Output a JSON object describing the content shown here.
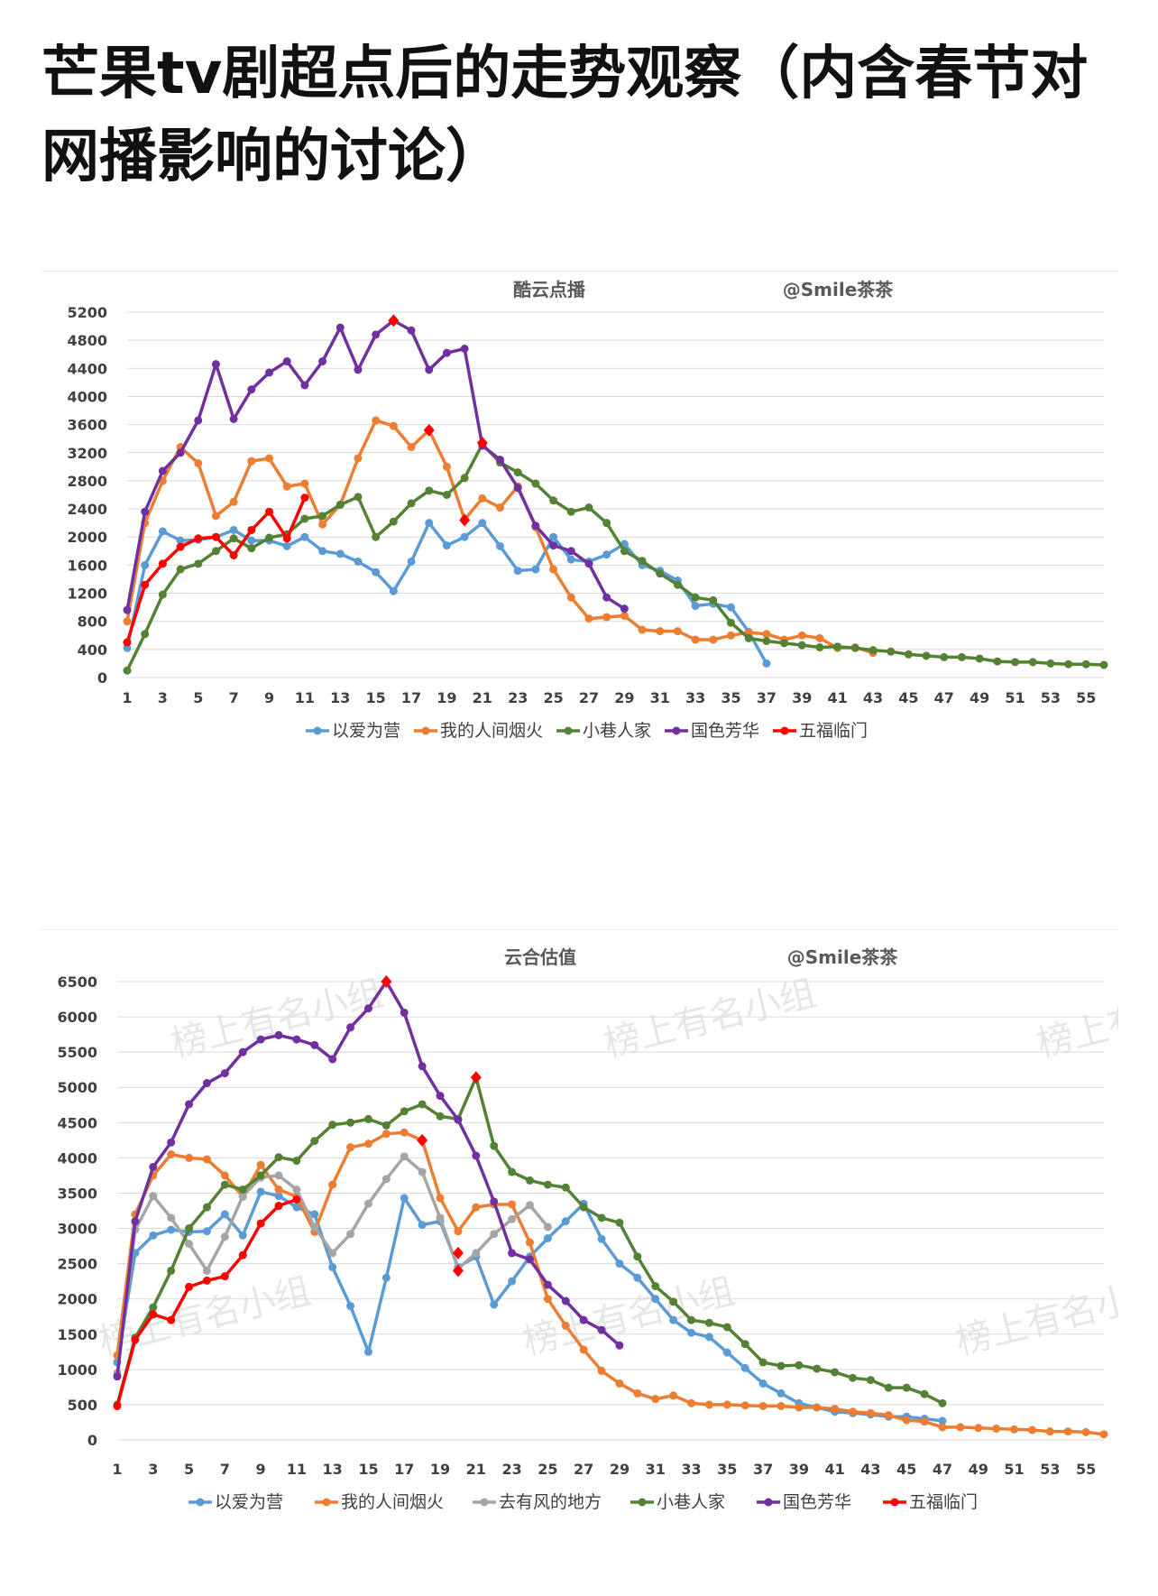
{
  "page": {
    "title": "芒果tv剧超点后的走势观察（内含春节对网播影响的讨论）"
  },
  "watermark": {
    "text": "榜上有名小组"
  },
  "colors": {
    "以爱为营": "#5B9BD5",
    "我的人间烟火": "#ED7D31",
    "去有风的地方": "#A5A5A5",
    "小巷人家": "#548235",
    "国色芳华": "#7030A0",
    "五福临门": "#FF0000"
  },
  "chart_data": [
    {
      "type": "line",
      "title": "酷云点播",
      "credit": "@Smile茶茶",
      "ylim": [
        0,
        5200
      ],
      "yticks": [
        "0",
        "400",
        "800",
        "1200",
        "1600",
        "2000",
        "2400",
        "2800",
        "3200",
        "3600",
        "4000",
        "4400",
        "4800",
        "5200"
      ],
      "xlim": [
        1,
        56
      ],
      "xticks": [
        "1",
        "3",
        "5",
        "7",
        "9",
        "11",
        "13",
        "15",
        "17",
        "19",
        "21",
        "23",
        "25",
        "27",
        "29",
        "31",
        "33",
        "35",
        "37",
        "39",
        "41",
        "43",
        "45",
        "47",
        "49",
        "51",
        "53",
        "55"
      ],
      "legend_position": "bottom",
      "grid": true,
      "series": [
        {
          "name": "以爱为营",
          "values": [
            420,
            1600,
            2080,
            1950,
            1960,
            2000,
            2100,
            1950,
            1950,
            1870,
            2000,
            1800,
            1760,
            1650,
            1500,
            1230,
            1650,
            2200,
            1880,
            2000,
            2200,
            1870,
            1520,
            1540,
            2000,
            1680,
            1650,
            1750,
            1900,
            1600,
            1520,
            1380,
            1020,
            1050,
            1000,
            650,
            200
          ]
        },
        {
          "name": "我的人间烟火",
          "values": [
            800,
            2200,
            2800,
            3280,
            3050,
            2300,
            2500,
            3080,
            3120,
            2720,
            2760,
            2180,
            2460,
            3120,
            3660,
            3580,
            3280,
            3520,
            3000,
            2250,
            2550,
            2420,
            2720,
            2140,
            1540,
            1140,
            840,
            860,
            880,
            680,
            660,
            660,
            540,
            540,
            600,
            640,
            620,
            540,
            600,
            560,
            420,
            430,
            350
          ]
        },
        {
          "name": "小巷人家",
          "values": [
            100,
            620,
            1180,
            1540,
            1620,
            1800,
            1980,
            1840,
            1990,
            2040,
            2260,
            2300,
            2460,
            2570,
            2000,
            2220,
            2480,
            2660,
            2600,
            2840,
            3320,
            3060,
            2920,
            2760,
            2520,
            2360,
            2420,
            2200,
            1800,
            1660,
            1480,
            1320,
            1140,
            1100,
            780,
            560,
            520,
            490,
            460,
            430,
            440,
            420,
            390,
            370,
            330,
            310,
            290,
            290,
            270,
            230,
            220,
            220,
            200,
            190,
            190,
            180
          ]
        },
        {
          "name": "国色芳华",
          "values": [
            960,
            2360,
            2940,
            3200,
            3660,
            4460,
            3680,
            4100,
            4340,
            4500,
            4160,
            4500,
            4980,
            4380,
            4880,
            5080,
            4940,
            4380,
            4620,
            4680,
            3300,
            3100,
            2700,
            2160,
            1880,
            1800,
            1620,
            1140,
            980
          ]
        },
        {
          "name": "五福临门",
          "values": [
            500,
            1320,
            1620,
            1860,
            1980,
            2000,
            1740,
            2100,
            2360,
            1980,
            2560
          ],
          "highlight_points": [
            16,
            18,
            20,
            21
          ],
          "highlight_values": [
            5080,
            3520,
            2240,
            3340
          ]
        }
      ]
    },
    {
      "type": "line",
      "title": "云合估值",
      "credit": "@Smile茶茶",
      "ylim": [
        0,
        6500
      ],
      "yticks": [
        "0",
        "500",
        "1000",
        "1500",
        "2000",
        "2500",
        "3000",
        "3500",
        "4000",
        "4500",
        "5000",
        "5500",
        "6000",
        "6500"
      ],
      "xlim": [
        1,
        56
      ],
      "xticks": [
        "1",
        "3",
        "5",
        "7",
        "9",
        "11",
        "13",
        "15",
        "17",
        "19",
        "21",
        "23",
        "25",
        "27",
        "29",
        "31",
        "33",
        "35",
        "37",
        "39",
        "41",
        "43",
        "45",
        "47",
        "49",
        "51",
        "53",
        "55"
      ],
      "legend_position": "bottom",
      "grid": true,
      "series": [
        {
          "name": "以爱为营",
          "values": [
            1100,
            2650,
            2900,
            2980,
            2950,
            2960,
            3200,
            2900,
            3520,
            3460,
            3300,
            3200,
            2450,
            1900,
            1250,
            2300,
            3430,
            3050,
            3100,
            2450,
            2600,
            1920,
            2250,
            2600,
            2860,
            3100,
            3350,
            2850,
            2500,
            2300,
            2000,
            1700,
            1520,
            1460,
            1240,
            1020,
            800,
            660,
            520,
            460,
            400,
            380,
            360,
            330,
            330,
            300,
            270
          ]
        },
        {
          "name": "我的人间烟火",
          "values": [
            1200,
            3200,
            3750,
            4050,
            4000,
            3980,
            3750,
            3450,
            3900,
            3550,
            3450,
            2950,
            3620,
            4150,
            4200,
            4340,
            4360,
            4250,
            3430,
            2960,
            3300,
            3340,
            3340,
            2800,
            2000,
            1620,
            1280,
            980,
            800,
            660,
            580,
            630,
            520,
            500,
            500,
            490,
            480,
            480,
            460,
            460,
            440,
            400,
            380,
            350,
            280,
            260,
            180,
            180,
            170,
            160,
            150,
            140,
            120,
            120,
            110,
            80
          ]
        },
        {
          "name": "去有风的地方",
          "values": [
            950,
            2980,
            3460,
            3150,
            2780,
            2400,
            2880,
            3460,
            3720,
            3750,
            3550,
            3020,
            2650,
            2920,
            3350,
            3700,
            4020,
            3800,
            3150,
            2430,
            2650,
            2920,
            3130,
            3330,
            3020
          ]
        },
        {
          "name": "小巷人家",
          "values": [
            500,
            1450,
            1880,
            2400,
            3000,
            3300,
            3620,
            3550,
            3750,
            4010,
            3960,
            4240,
            4470,
            4500,
            4550,
            4460,
            4660,
            4760,
            4590,
            4550,
            5140,
            4170,
            3800,
            3680,
            3620,
            3580,
            3300,
            3150,
            3080,
            2600,
            2180,
            1960,
            1700,
            1660,
            1600,
            1360,
            1100,
            1050,
            1060,
            1010,
            960,
            880,
            850,
            740,
            740,
            650,
            520
          ]
        },
        {
          "name": "国色芳华",
          "values": [
            900,
            3100,
            3870,
            4220,
            4760,
            5060,
            5200,
            5500,
            5680,
            5740,
            5680,
            5600,
            5400,
            5850,
            6120,
            6500,
            6060,
            5300,
            4880,
            4540,
            4030,
            3380,
            2650,
            2560,
            2200,
            1970,
            1700,
            1560,
            1340
          ]
        },
        {
          "name": "五福临门",
          "values": [
            480,
            1420,
            1780,
            1700,
            2170,
            2260,
            2320,
            2620,
            3070,
            3320,
            3410
          ],
          "highlight_points": [
            16,
            18,
            20,
            20,
            21
          ],
          "highlight_values": [
            6500,
            4250,
            2400,
            2650,
            5140
          ]
        }
      ]
    }
  ]
}
